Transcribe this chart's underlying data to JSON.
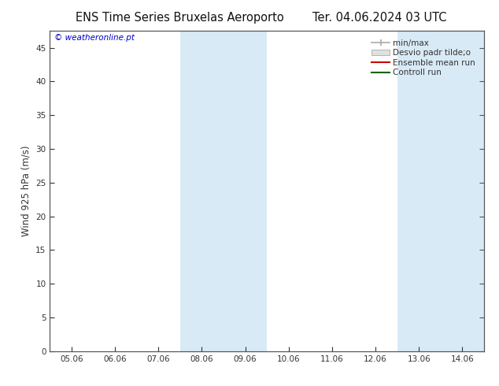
{
  "title_left": "ENS Time Series Bruxelas Aeroporto",
  "title_right": "Ter. 04.06.2024 03 UTC",
  "ylabel": "Wind 925 hPa (m/s)",
  "watermark": "© weatheronline.pt",
  "yticks": [
    0,
    5,
    10,
    15,
    20,
    25,
    30,
    35,
    40,
    45
  ],
  "ylim": [
    0,
    47.5
  ],
  "xtick_labels": [
    "05.06",
    "06.06",
    "07.06",
    "08.06",
    "09.06",
    "10.06",
    "11.06",
    "12.06",
    "13.06",
    "14.06"
  ],
  "xtick_positions": [
    0,
    1,
    2,
    3,
    4,
    5,
    6,
    7,
    8,
    9
  ],
  "xlim": [
    -0.5,
    9.5
  ],
  "shade_bands": [
    {
      "x_start": 2.5,
      "x_end": 3.5,
      "color": "#d8eaf6"
    },
    {
      "x_start": 3.5,
      "x_end": 4.5,
      "color": "#d8eaf6"
    },
    {
      "x_start": 7.5,
      "x_end": 8.5,
      "color": "#d8eaf6"
    },
    {
      "x_start": 8.5,
      "x_end": 9.5,
      "color": "#d8eaf6"
    }
  ],
  "legend_entries": [
    {
      "label": "min/max",
      "color": "#aaaaaa",
      "style": "minmax"
    },
    {
      "label": "Desvio padr tilde;o",
      "color": "#cccccc",
      "style": "box"
    },
    {
      "label": "Ensemble mean run",
      "color": "#cc0000",
      "style": "line"
    },
    {
      "label": "Controll run",
      "color": "#006600",
      "style": "line"
    }
  ],
  "bg_color": "#ffffff",
  "plot_bg_color": "#ffffff",
  "spine_color": "#555555",
  "tick_color": "#333333",
  "title_fontsize": 10.5,
  "label_fontsize": 8.5,
  "tick_fontsize": 7.5,
  "watermark_color": "#0000cc",
  "watermark_fontsize": 7.5,
  "legend_fontsize": 7.5
}
